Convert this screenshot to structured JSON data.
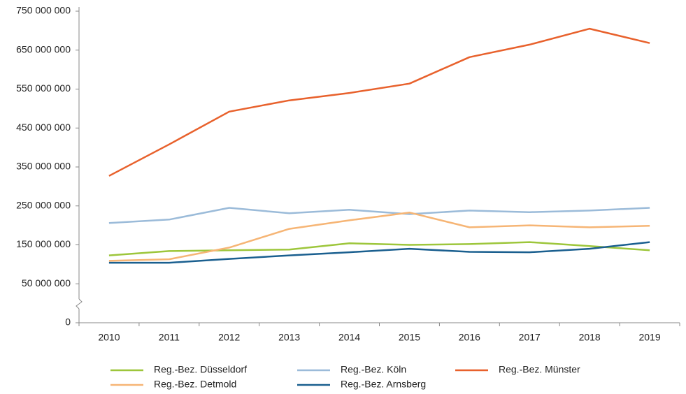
{
  "chart_data": {
    "type": "line",
    "categories": [
      "2010",
      "2011",
      "2012",
      "2013",
      "2014",
      "2015",
      "2016",
      "2017",
      "2018",
      "2019"
    ],
    "series": [
      {
        "name": "Reg.-Bez. Düsseldorf",
        "color": "#9dc63b",
        "values": [
          123000000,
          134000000,
          136000000,
          138000000,
          154000000,
          150000000,
          152000000,
          157000000,
          147000000,
          136000000
        ]
      },
      {
        "name": "Reg.-Bez. Köln",
        "color": "#9bbbd9",
        "values": [
          206000000,
          215000000,
          245000000,
          231000000,
          240000000,
          229000000,
          238000000,
          234000000,
          238000000,
          245000000
        ]
      },
      {
        "name": "Reg.-Bez. Münster",
        "color": "#e8612c",
        "values": [
          327000000,
          408000000,
          492000000,
          521000000,
          540000000,
          564000000,
          632000000,
          664000000,
          705000000,
          668000000
        ]
      },
      {
        "name": "Reg.-Bez. Detmold",
        "color": "#f6b575",
        "values": [
          109000000,
          113000000,
          143000000,
          191000000,
          213000000,
          233000000,
          195000000,
          200000000,
          195000000,
          199000000
        ]
      },
      {
        "name": "Reg.-Bez. Arnsberg",
        "color": "#1a5f8f",
        "values": [
          104000000,
          104000000,
          114000000,
          123000000,
          131000000,
          140000000,
          132000000,
          131000000,
          140000000,
          157000000
        ]
      }
    ],
    "ylim": [
      0,
      750000000
    ],
    "yticks": [
      0,
      {
        "value": 50000000,
        "label": "50 000 000"
      },
      {
        "value": 150000000,
        "label": "150 000 000"
      },
      {
        "value": 250000000,
        "label": "250 000 000"
      },
      {
        "value": 350000000,
        "label": "350 000 000"
      },
      {
        "value": 450000000,
        "label": "450 000 000"
      },
      {
        "value": 550000000,
        "label": "550 000 000"
      },
      {
        "value": 650000000,
        "label": "650 000 000"
      },
      {
        "value": 750000000,
        "label": "750 000 000"
      }
    ]
  }
}
